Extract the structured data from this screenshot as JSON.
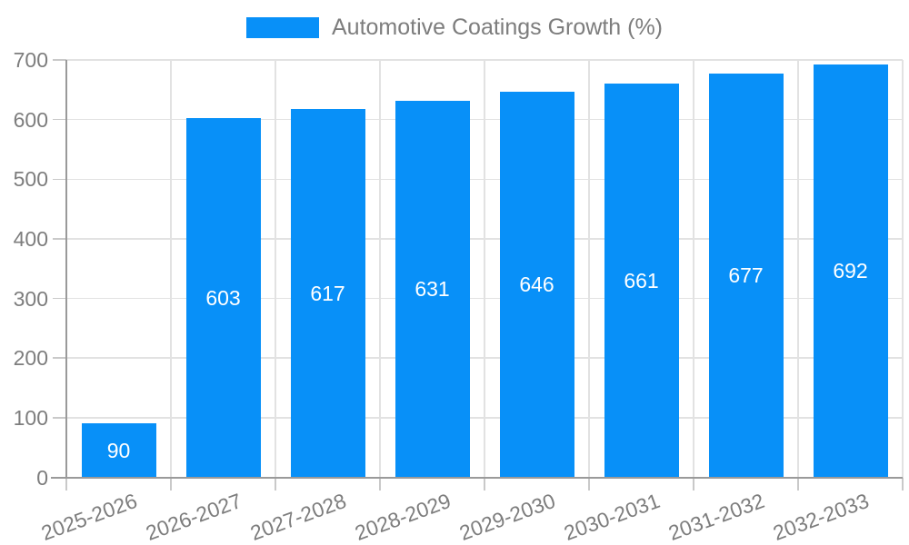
{
  "colors": {
    "bar": "#0890f8",
    "grid": "#e2e2e2",
    "axis": "#9a9a9a",
    "tick": "#c9c9c9",
    "text": "#7d7d7d",
    "value_label": "#ffffff",
    "background": "#ffffff"
  },
  "chart_data": {
    "type": "bar",
    "title": "",
    "categories": [
      "2025-2026",
      "2026-2027",
      "2027-2028",
      "2028-2029",
      "2029-2030",
      "2030-2031",
      "2031-2032",
      "2032-2033"
    ],
    "series": [
      {
        "name": "Automotive Coatings Growth (%)",
        "values": [
          90,
          603,
          617,
          631,
          646,
          661,
          677,
          692
        ]
      }
    ],
    "xlabel": "",
    "ylabel": "",
    "ylim": [
      0,
      700
    ],
    "yticks": [
      0,
      100,
      200,
      300,
      400,
      500,
      600,
      700
    ],
    "grid": true,
    "legend_position": "top",
    "value_labels": "inside-center",
    "x_label_rotation_deg": -20
  }
}
